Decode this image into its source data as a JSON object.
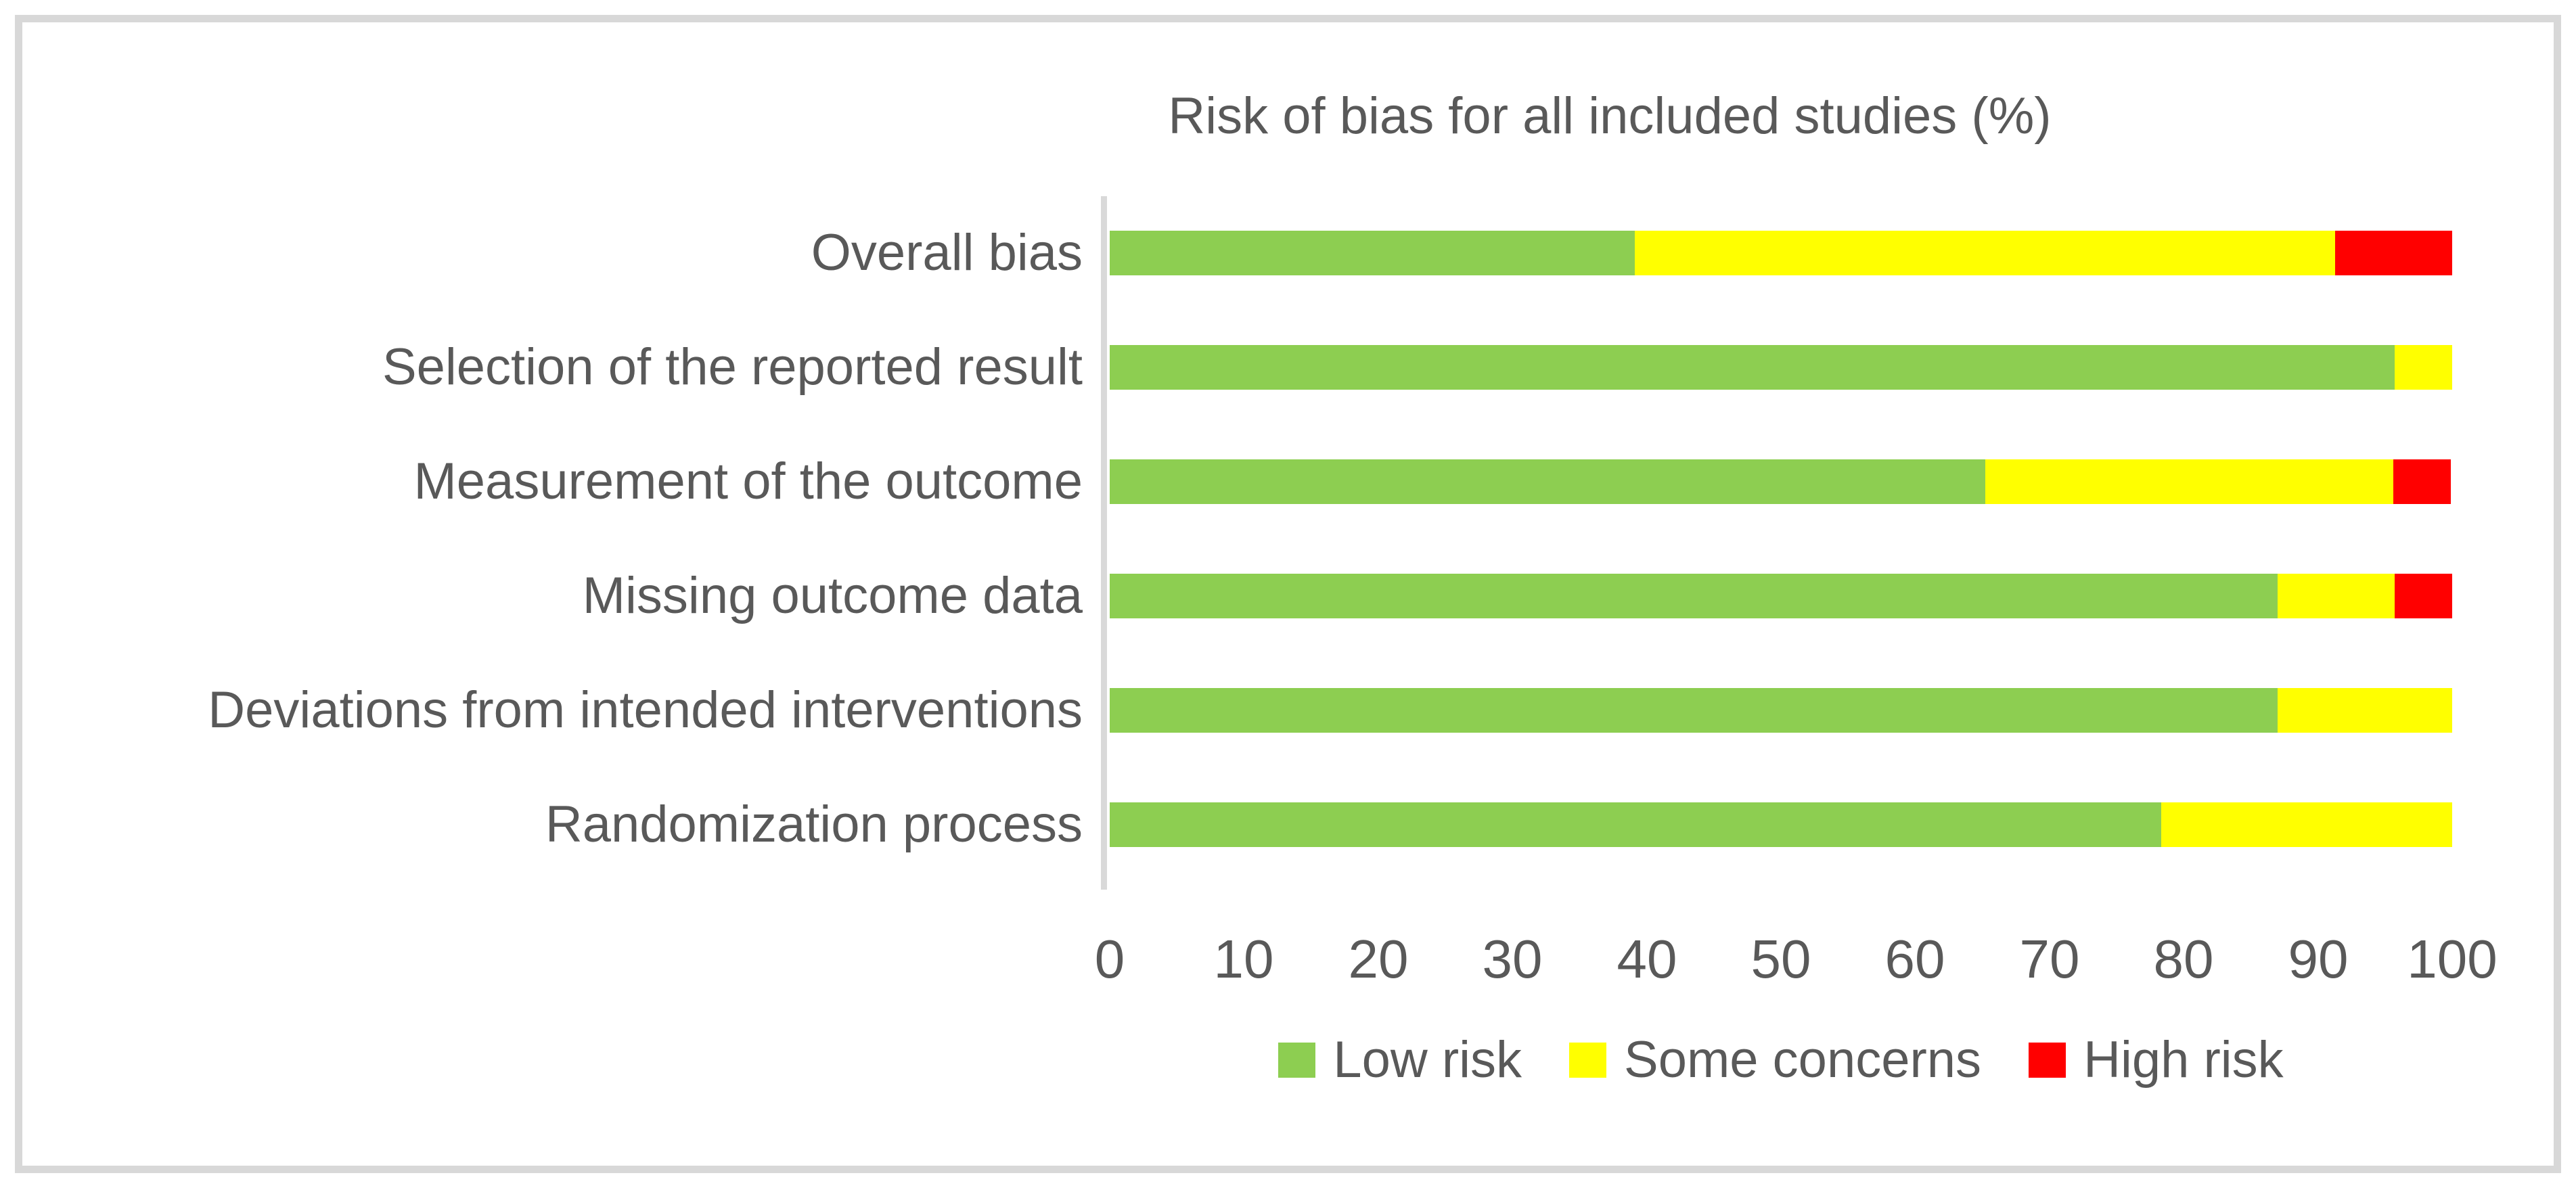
{
  "chart_data": {
    "type": "bar",
    "stacked": true,
    "orientation": "horizontal",
    "title": "Risk of bias for all included studies (%)",
    "categories": [
      "Overall bias",
      "Selection of the reported result",
      "Measurement of the outcome",
      "Missing outcome data",
      "Deviations from intended interventions",
      "Randomization process"
    ],
    "series": [
      {
        "name": "Low risk",
        "color": "#8DCE51",
        "values": [
          39.1,
          95.7,
          65.2,
          87.0,
          87.0,
          78.3
        ]
      },
      {
        "name": "Some concerns",
        "color": "#FFFF00",
        "values": [
          52.2,
          4.3,
          30.4,
          8.7,
          13.0,
          21.7
        ]
      },
      {
        "name": "High risk",
        "color": "#FF0000",
        "values": [
          8.7,
          0,
          4.3,
          4.3,
          0,
          0
        ]
      }
    ],
    "xlim": [
      0,
      100
    ],
    "x_ticks": [
      0,
      10,
      20,
      30,
      40,
      50,
      60,
      70,
      80,
      90,
      100
    ],
    "legend_position": "bottom",
    "grid": false,
    "axis_line_color": "#D9D9D9",
    "text_color": "#595959",
    "frame_border_color": "#D8D8D8"
  }
}
